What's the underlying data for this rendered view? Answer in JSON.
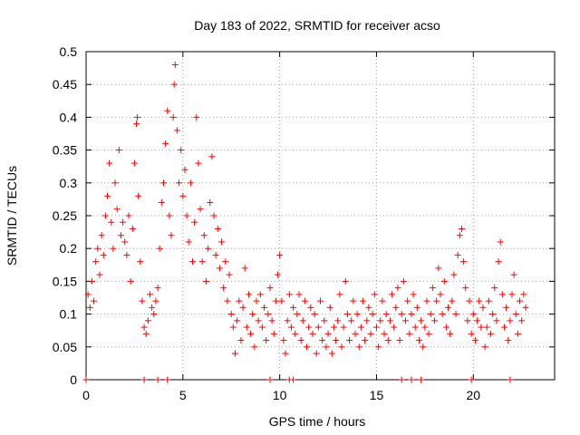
{
  "chart_data": {
    "type": "scatter",
    "title": "Day 183 of 2022, SRMTID for receiver acso",
    "xlabel": "GPS time / hours",
    "ylabel": "SRMTID / TECUs",
    "xlim": [
      0,
      24.2
    ],
    "ylim": [
      0,
      0.5
    ],
    "xticks": [
      0,
      5,
      10,
      15,
      20
    ],
    "yticks": [
      0,
      0.05,
      0.1,
      0.15,
      0.2,
      0.25,
      0.3,
      0.35,
      0.4,
      0.45,
      0.5
    ],
    "grid": true,
    "marker": "+",
    "series": [
      {
        "name": "SRMTID",
        "color": "#ff0000",
        "points": [
          [
            0.0,
            0.0
          ],
          [
            0.1,
            0.13
          ],
          [
            0.2,
            0.11
          ],
          [
            0.3,
            0.15
          ],
          [
            0.4,
            0.12
          ],
          [
            0.5,
            0.18
          ],
          [
            0.6,
            0.2
          ],
          [
            0.7,
            0.16
          ],
          [
            0.8,
            0.22
          ],
          [
            0.9,
            0.19
          ],
          [
            1.0,
            0.25
          ],
          [
            1.1,
            0.28
          ],
          [
            1.2,
            0.33
          ],
          [
            1.3,
            0.24
          ],
          [
            1.4,
            0.2
          ],
          [
            1.5,
            0.3
          ],
          [
            1.6,
            0.26
          ],
          [
            1.7,
            0.35
          ],
          [
            1.8,
            0.22
          ],
          [
            1.9,
            0.24
          ],
          [
            2.0,
            0.21
          ],
          [
            2.1,
            0.19
          ],
          [
            2.2,
            0.25
          ],
          [
            2.3,
            0.15
          ],
          [
            2.4,
            0.23
          ],
          [
            2.5,
            0.33
          ],
          [
            2.6,
            0.39
          ],
          [
            2.65,
            0.4
          ],
          [
            2.7,
            0.28
          ],
          [
            2.8,
            0.18
          ],
          [
            2.9,
            0.12
          ],
          [
            3.0,
            0.08
          ],
          [
            3.1,
            0.07
          ],
          [
            3.2,
            0.09
          ],
          [
            3.3,
            0.13
          ],
          [
            3.4,
            0.11
          ],
          [
            3.5,
            0.1
          ],
          [
            3.6,
            0.12
          ],
          [
            3.7,
            0.14
          ],
          [
            3.8,
            0.2
          ],
          [
            3.9,
            0.27
          ],
          [
            4.0,
            0.3
          ],
          [
            4.1,
            0.36
          ],
          [
            4.2,
            0.41
          ],
          [
            4.3,
            0.25
          ],
          [
            4.4,
            0.22
          ],
          [
            4.5,
            0.4
          ],
          [
            4.55,
            0.45
          ],
          [
            4.6,
            0.48
          ],
          [
            4.7,
            0.38
          ],
          [
            4.8,
            0.3
          ],
          [
            4.9,
            0.35
          ],
          [
            5.0,
            0.28
          ],
          [
            5.1,
            0.32
          ],
          [
            5.2,
            0.25
          ],
          [
            5.3,
            0.21
          ],
          [
            5.4,
            0.3
          ],
          [
            5.5,
            0.18
          ],
          [
            5.6,
            0.24
          ],
          [
            5.7,
            0.4
          ],
          [
            5.8,
            0.33
          ],
          [
            5.9,
            0.26
          ],
          [
            6.0,
            0.18
          ],
          [
            6.1,
            0.22
          ],
          [
            6.2,
            0.15
          ],
          [
            6.3,
            0.2
          ],
          [
            6.4,
            0.27
          ],
          [
            6.5,
            0.34
          ],
          [
            6.6,
            0.25
          ],
          [
            6.7,
            0.19
          ],
          [
            6.8,
            0.23
          ],
          [
            6.9,
            0.17
          ],
          [
            7.0,
            0.21
          ],
          [
            7.1,
            0.14
          ],
          [
            7.2,
            0.18
          ],
          [
            7.3,
            0.12
          ],
          [
            7.4,
            0.16
          ],
          [
            7.5,
            0.1
          ],
          [
            7.6,
            0.08
          ],
          [
            7.7,
            0.04
          ],
          [
            7.8,
            0.09
          ],
          [
            7.9,
            0.12
          ],
          [
            8.0,
            0.06
          ],
          [
            8.1,
            0.11
          ],
          [
            8.2,
            0.17
          ],
          [
            8.3,
            0.08
          ],
          [
            8.4,
            0.13
          ],
          [
            8.5,
            0.07
          ],
          [
            8.6,
            0.1
          ],
          [
            8.7,
            0.05
          ],
          [
            8.8,
            0.12
          ],
          [
            8.9,
            0.09
          ],
          [
            9.0,
            0.13
          ],
          [
            9.1,
            0.08
          ],
          [
            9.2,
            0.11
          ],
          [
            9.3,
            0.06
          ],
          [
            9.4,
            0.1
          ],
          [
            9.5,
            0.14
          ],
          [
            9.6,
            0.09
          ],
          [
            9.7,
            0.07
          ],
          [
            9.8,
            0.12
          ],
          [
            9.9,
            0.16
          ],
          [
            10.0,
            0.19
          ],
          [
            10.1,
            0.12
          ],
          [
            10.2,
            0.06
          ],
          [
            10.3,
            0.04
          ],
          [
            10.4,
            0.09
          ],
          [
            10.5,
            0.13
          ],
          [
            10.6,
            0.08
          ],
          [
            10.7,
            0.11
          ],
          [
            10.8,
            0.07
          ],
          [
            10.9,
            0.1
          ],
          [
            11.0,
            0.13
          ],
          [
            11.1,
            0.06
          ],
          [
            11.2,
            0.09
          ],
          [
            11.3,
            0.12
          ],
          [
            11.4,
            0.05
          ],
          [
            11.5,
            0.08
          ],
          [
            11.6,
            0.11
          ],
          [
            11.7,
            0.07
          ],
          [
            11.8,
            0.1
          ],
          [
            11.9,
            0.04
          ],
          [
            12.0,
            0.08
          ],
          [
            12.1,
            0.12
          ],
          [
            12.2,
            0.06
          ],
          [
            12.3,
            0.09
          ],
          [
            12.4,
            0.05
          ],
          [
            12.5,
            0.07
          ],
          [
            12.6,
            0.11
          ],
          [
            12.7,
            0.04
          ],
          [
            12.8,
            0.08
          ],
          [
            12.9,
            0.06
          ],
          [
            13.0,
            0.09
          ],
          [
            13.1,
            0.13
          ],
          [
            13.2,
            0.05
          ],
          [
            13.3,
            0.08
          ],
          [
            13.4,
            0.15
          ],
          [
            13.5,
            0.1
          ],
          [
            13.6,
            0.06
          ],
          [
            13.7,
            0.09
          ],
          [
            13.8,
            0.12
          ],
          [
            13.9,
            0.07
          ],
          [
            14.0,
            0.1
          ],
          [
            14.1,
            0.05
          ],
          [
            14.2,
            0.08
          ],
          [
            14.3,
            0.12
          ],
          [
            14.4,
            0.06
          ],
          [
            14.5,
            0.09
          ],
          [
            14.6,
            0.11
          ],
          [
            14.7,
            0.07
          ],
          [
            14.8,
            0.1
          ],
          [
            14.9,
            0.13
          ],
          [
            15.0,
            0.08
          ],
          [
            15.1,
            0.05
          ],
          [
            15.2,
            0.09
          ],
          [
            15.3,
            0.12
          ],
          [
            15.4,
            0.07
          ],
          [
            15.5,
            0.1
          ],
          [
            15.6,
            0.06
          ],
          [
            15.7,
            0.09
          ],
          [
            15.8,
            0.13
          ],
          [
            15.9,
            0.08
          ],
          [
            16.0,
            0.11
          ],
          [
            16.1,
            0.14
          ],
          [
            16.2,
            0.06
          ],
          [
            16.3,
            0.1
          ],
          [
            16.4,
            0.15
          ],
          [
            16.5,
            0.09
          ],
          [
            16.6,
            0.12
          ],
          [
            16.7,
            0.07
          ],
          [
            16.8,
            0.1
          ],
          [
            16.9,
            0.13
          ],
          [
            17.0,
            0.08
          ],
          [
            17.1,
            0.11
          ],
          [
            17.2,
            0.06
          ],
          [
            17.3,
            0.09
          ],
          [
            17.4,
            0.05
          ],
          [
            17.5,
            0.08
          ],
          [
            17.6,
            0.12
          ],
          [
            17.7,
            0.07
          ],
          [
            17.8,
            0.1
          ],
          [
            17.9,
            0.14
          ],
          [
            18.0,
            0.09
          ],
          [
            18.1,
            0.12
          ],
          [
            18.2,
            0.17
          ],
          [
            18.3,
            0.13
          ],
          [
            18.4,
            0.1
          ],
          [
            18.5,
            0.15
          ],
          [
            18.6,
            0.08
          ],
          [
            18.7,
            0.11
          ],
          [
            18.8,
            0.07
          ],
          [
            18.9,
            0.12
          ],
          [
            19.0,
            0.16
          ],
          [
            19.1,
            0.1
          ],
          [
            19.2,
            0.19
          ],
          [
            19.3,
            0.22
          ],
          [
            19.4,
            0.23
          ],
          [
            19.5,
            0.18
          ],
          [
            19.6,
            0.14
          ],
          [
            19.7,
            0.09
          ],
          [
            19.8,
            0.12
          ],
          [
            19.9,
            0.07
          ],
          [
            20.0,
            0.1
          ],
          [
            20.1,
            0.06
          ],
          [
            20.2,
            0.09
          ],
          [
            20.3,
            0.12
          ],
          [
            20.4,
            0.08
          ],
          [
            20.5,
            0.11
          ],
          [
            20.6,
            0.05
          ],
          [
            20.7,
            0.08
          ],
          [
            20.8,
            0.12
          ],
          [
            20.9,
            0.07
          ],
          [
            21.0,
            0.1
          ],
          [
            21.1,
            0.14
          ],
          [
            21.2,
            0.09
          ],
          [
            21.3,
            0.18
          ],
          [
            21.4,
            0.21
          ],
          [
            21.5,
            0.13
          ],
          [
            21.6,
            0.08
          ],
          [
            21.7,
            0.11
          ],
          [
            21.8,
            0.06
          ],
          [
            21.9,
            0.09
          ],
          [
            22.0,
            0.13
          ],
          [
            22.1,
            0.16
          ],
          [
            22.2,
            0.1
          ],
          [
            22.3,
            0.07
          ],
          [
            22.4,
            0.12
          ],
          [
            22.5,
            0.09
          ],
          [
            22.6,
            0.13
          ],
          [
            22.7,
            0.11
          ],
          [
            3.0,
            0.0
          ],
          [
            3.7,
            0.0
          ],
          [
            4.2,
            0.0
          ],
          [
            9.5,
            0.0
          ],
          [
            10.5,
            0.0
          ],
          [
            10.7,
            0.0
          ],
          [
            16.3,
            0.0
          ],
          [
            16.8,
            0.0
          ],
          [
            17.3,
            0.0
          ],
          [
            19.9,
            0.0
          ],
          [
            21.9,
            0.0
          ]
        ]
      }
    ]
  }
}
